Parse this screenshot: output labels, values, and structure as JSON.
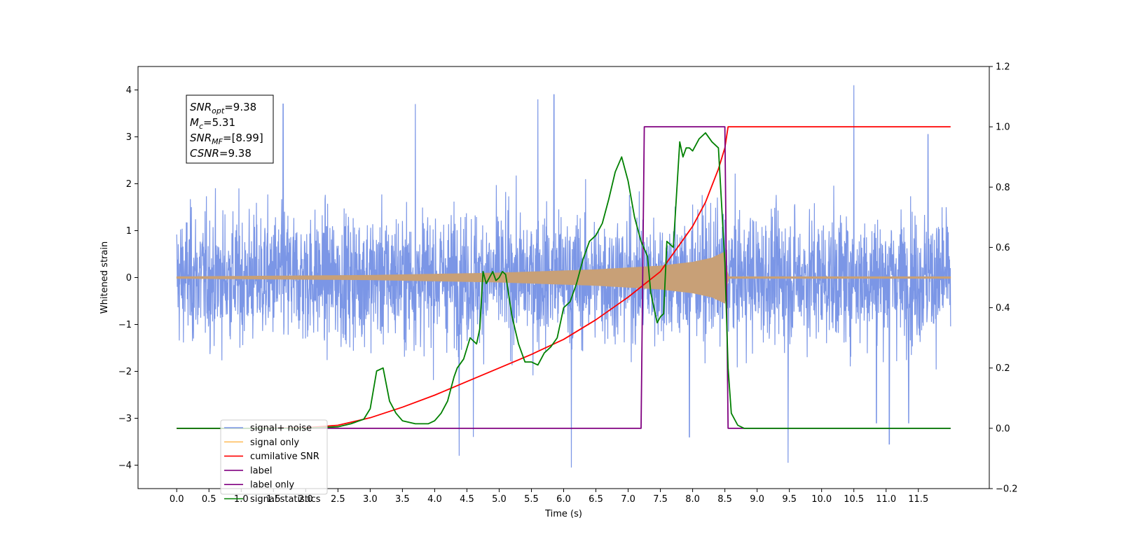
{
  "chart_data": {
    "type": "line",
    "xlabel": "Time (s)",
    "ylabel": "Whitened strain",
    "xlim": [
      -0.6,
      12.6
    ],
    "ylim": [
      -4.5,
      4.5
    ],
    "ylim_right": [
      -0.2,
      1.2
    ],
    "x_ticks": [
      "0.0",
      "0.5",
      "1.0",
      "1.5",
      "2.0",
      "2.5",
      "3.0",
      "3.5",
      "4.0",
      "4.5",
      "5.0",
      "5.5",
      "6.0",
      "6.5",
      "7.0",
      "7.5",
      "8.0",
      "8.5",
      "9.0",
      "9.5",
      "10.0",
      "10.5",
      "11.0",
      "11.5"
    ],
    "y_ticks_left": [
      "−4",
      "−3",
      "−2",
      "−1",
      "0",
      "1",
      "2",
      "3",
      "4"
    ],
    "y_ticks_right": [
      "−0.2",
      "0.0",
      "0.2",
      "0.4",
      "0.6",
      "0.8",
      "1.0",
      "1.2"
    ],
    "grid": false,
    "legend_position": "lower-left",
    "annotation": {
      "lines": [
        {
          "name": "SNR",
          "sub": "opt",
          "value": "=9.38"
        },
        {
          "name": "M",
          "sub": "c",
          "value": "=5.31"
        },
        {
          "name": "SNR",
          "sub": "MF",
          "value": "=[8.99]"
        },
        {
          "name": "CSNR",
          "sub": "",
          "value": "=9.38"
        }
      ]
    },
    "series": [
      {
        "name": "signal+ noise",
        "axis": "left",
        "color": "#7b96e6",
        "duration": 12.0,
        "amplitude_envelope": [
          [
            0.0,
            1.3
          ],
          [
            12.0,
            1.3
          ]
        ],
        "spike_peaks": [
          [
            1.65,
            3.7
          ],
          [
            3.7,
            3.7
          ],
          [
            4.38,
            -3.8
          ],
          [
            4.6,
            -3.4
          ],
          [
            5.6,
            3.8
          ],
          [
            5.85,
            3.9
          ],
          [
            6.12,
            -4.05
          ],
          [
            7.95,
            -3.4
          ],
          [
            9.48,
            -3.95
          ],
          [
            10.5,
            4.1
          ],
          [
            10.85,
            -3.1
          ],
          [
            11.05,
            -3.55
          ],
          [
            11.35,
            -3.1
          ],
          [
            11.65,
            3.05
          ]
        ]
      },
      {
        "name": "signal only",
        "axis": "left",
        "color": "#c8a077",
        "envelope": [
          [
            0.0,
            0.02
          ],
          [
            3.0,
            0.05
          ],
          [
            5.0,
            0.1
          ],
          [
            6.5,
            0.17
          ],
          [
            7.5,
            0.25
          ],
          [
            8.0,
            0.33
          ],
          [
            8.3,
            0.42
          ],
          [
            8.5,
            0.55
          ],
          [
            8.55,
            0.02
          ],
          [
            12.0,
            0.02
          ]
        ]
      },
      {
        "name": "cumilative SNR",
        "axis": "right",
        "color": "#ff0000",
        "x": [
          0.0,
          1.0,
          2.0,
          2.5,
          3.0,
          3.5,
          4.0,
          4.5,
          5.0,
          5.5,
          6.0,
          6.5,
          7.0,
          7.5,
          8.0,
          8.2,
          8.4,
          8.5,
          8.55,
          8.6,
          12.0
        ],
        "y": [
          0.0,
          0.0,
          0.002,
          0.01,
          0.035,
          0.07,
          0.11,
          0.155,
          0.2,
          0.245,
          0.295,
          0.36,
          0.435,
          0.52,
          0.67,
          0.75,
          0.86,
          0.93,
          1.0,
          1.0,
          1.0
        ]
      },
      {
        "name": "label",
        "axis": "right",
        "color": "#800080",
        "x": [
          0.0,
          7.2,
          7.25,
          8.5,
          8.55,
          12.0
        ],
        "y": [
          0.0,
          0.0,
          1.0,
          1.0,
          0.0,
          0.0
        ]
      },
      {
        "name": "label only",
        "axis": "right",
        "color": "#800080",
        "x": [],
        "y": []
      },
      {
        "name": "signal statistics",
        "axis": "right",
        "color": "#008000",
        "x": [
          0.0,
          2.0,
          2.5,
          2.7,
          2.9,
          3.0,
          3.1,
          3.2,
          3.3,
          3.4,
          3.5,
          3.6,
          3.7,
          3.8,
          3.9,
          4.0,
          4.1,
          4.2,
          4.3,
          4.35,
          4.45,
          4.55,
          4.65,
          4.7,
          4.75,
          4.8,
          4.85,
          4.9,
          4.95,
          5.0,
          5.05,
          5.1,
          5.2,
          5.3,
          5.4,
          5.5,
          5.6,
          5.7,
          5.8,
          5.9,
          6.0,
          6.1,
          6.2,
          6.3,
          6.4,
          6.5,
          6.6,
          6.7,
          6.8,
          6.9,
          7.0,
          7.1,
          7.2,
          7.3,
          7.35,
          7.4,
          7.45,
          7.5,
          7.55,
          7.6,
          7.7,
          7.8,
          7.85,
          7.9,
          7.95,
          8.0,
          8.1,
          8.2,
          8.3,
          8.4,
          8.5,
          8.55,
          8.6,
          8.7,
          8.8,
          12.0
        ],
        "y": [
          0.0,
          0.0,
          0.005,
          0.015,
          0.03,
          0.065,
          0.19,
          0.2,
          0.09,
          0.05,
          0.025,
          0.02,
          0.015,
          0.015,
          0.015,
          0.025,
          0.05,
          0.09,
          0.17,
          0.2,
          0.23,
          0.3,
          0.28,
          0.33,
          0.52,
          0.48,
          0.5,
          0.52,
          0.49,
          0.5,
          0.52,
          0.51,
          0.37,
          0.28,
          0.22,
          0.22,
          0.21,
          0.25,
          0.27,
          0.3,
          0.4,
          0.42,
          0.48,
          0.56,
          0.62,
          0.64,
          0.68,
          0.76,
          0.85,
          0.9,
          0.82,
          0.7,
          0.62,
          0.57,
          0.45,
          0.4,
          0.35,
          0.37,
          0.38,
          0.62,
          0.6,
          0.95,
          0.9,
          0.93,
          0.93,
          0.92,
          0.96,
          0.98,
          0.95,
          0.93,
          0.55,
          0.2,
          0.05,
          0.01,
          0.0,
          0.0
        ]
      }
    ]
  }
}
